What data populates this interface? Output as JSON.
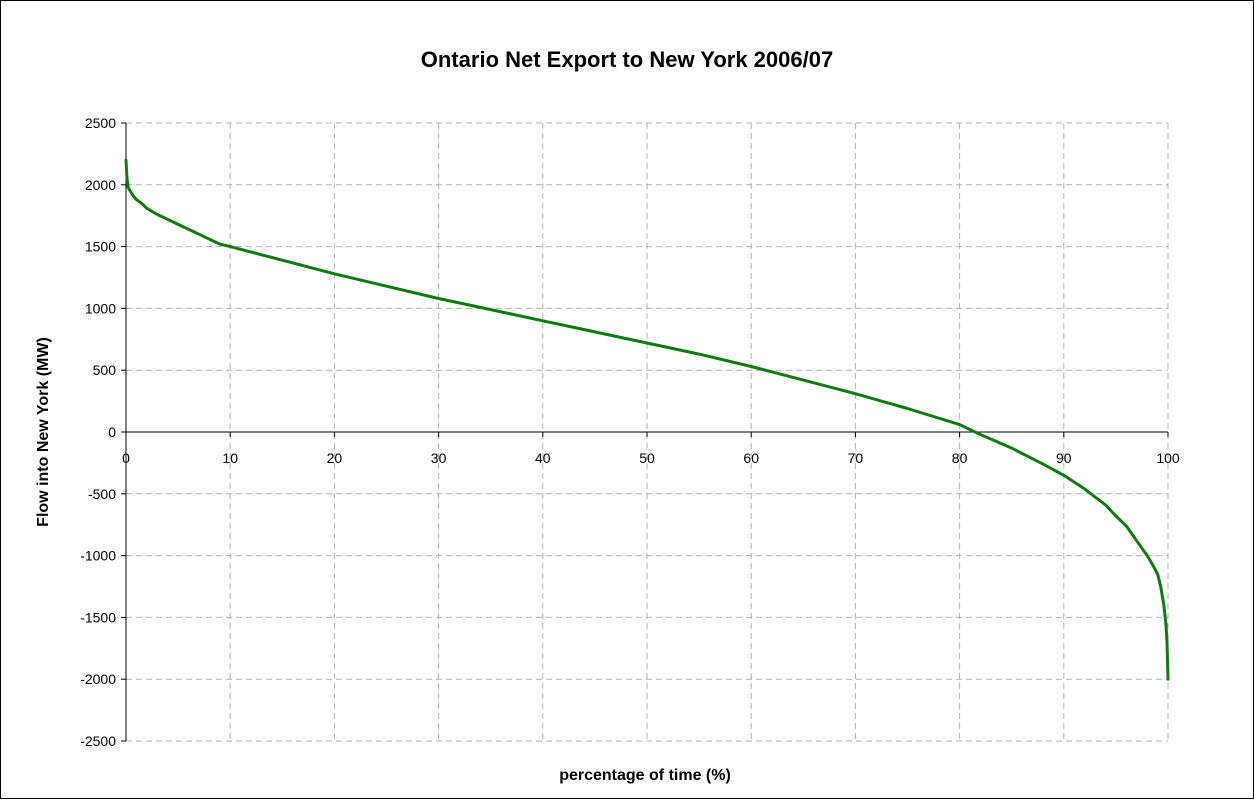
{
  "chart_data": {
    "type": "line",
    "title": "Ontario Net Export to New York 2006/07",
    "xlabel": "percentage of time (%)",
    "ylabel": "Flow into New York (MW)",
    "xlim": [
      0,
      100
    ],
    "ylim": [
      -2500,
      2500
    ],
    "x_ticks": [
      0,
      10,
      20,
      30,
      40,
      50,
      60,
      70,
      80,
      90,
      100
    ],
    "y_ticks": [
      2500,
      2000,
      1500,
      1000,
      500,
      0,
      -500,
      -1000,
      -1500,
      -2000,
      -2500
    ],
    "x_tick_labels": [
      "0",
      "10",
      "20",
      "30",
      "40",
      "50",
      "60",
      "70",
      "80",
      "90",
      "100"
    ],
    "y_tick_labels": [
      "2500",
      "2000",
      "1500",
      "1000",
      "500",
      "0",
      "-500",
      "-1000",
      "-1500",
      "-2000",
      "-2500"
    ],
    "grid": true,
    "legend": false,
    "series": [
      {
        "color": "#107a10",
        "x": [
          0,
          0.1,
          0.2,
          0.4,
          0.7,
          1,
          1.5,
          2,
          3,
          4,
          5,
          7,
          9,
          10,
          15,
          20,
          25,
          30,
          35,
          40,
          45,
          50,
          55,
          60,
          65,
          70,
          75,
          80,
          82,
          85,
          88,
          90,
          92,
          94,
          95,
          96,
          97,
          98,
          98.5,
          99,
          99.3,
          99.6,
          99.8,
          99.9,
          100
        ],
        "y": [
          2200,
          2050,
          1980,
          1950,
          1910,
          1880,
          1850,
          1810,
          1760,
          1720,
          1680,
          1600,
          1520,
          1500,
          1390,
          1280,
          1180,
          1080,
          990,
          900,
          810,
          720,
          630,
          530,
          420,
          310,
          190,
          60,
          -20,
          -130,
          -260,
          -350,
          -460,
          -590,
          -680,
          -760,
          -880,
          -1000,
          -1070,
          -1150,
          -1250,
          -1400,
          -1550,
          -1700,
          -2000
        ]
      }
    ]
  }
}
